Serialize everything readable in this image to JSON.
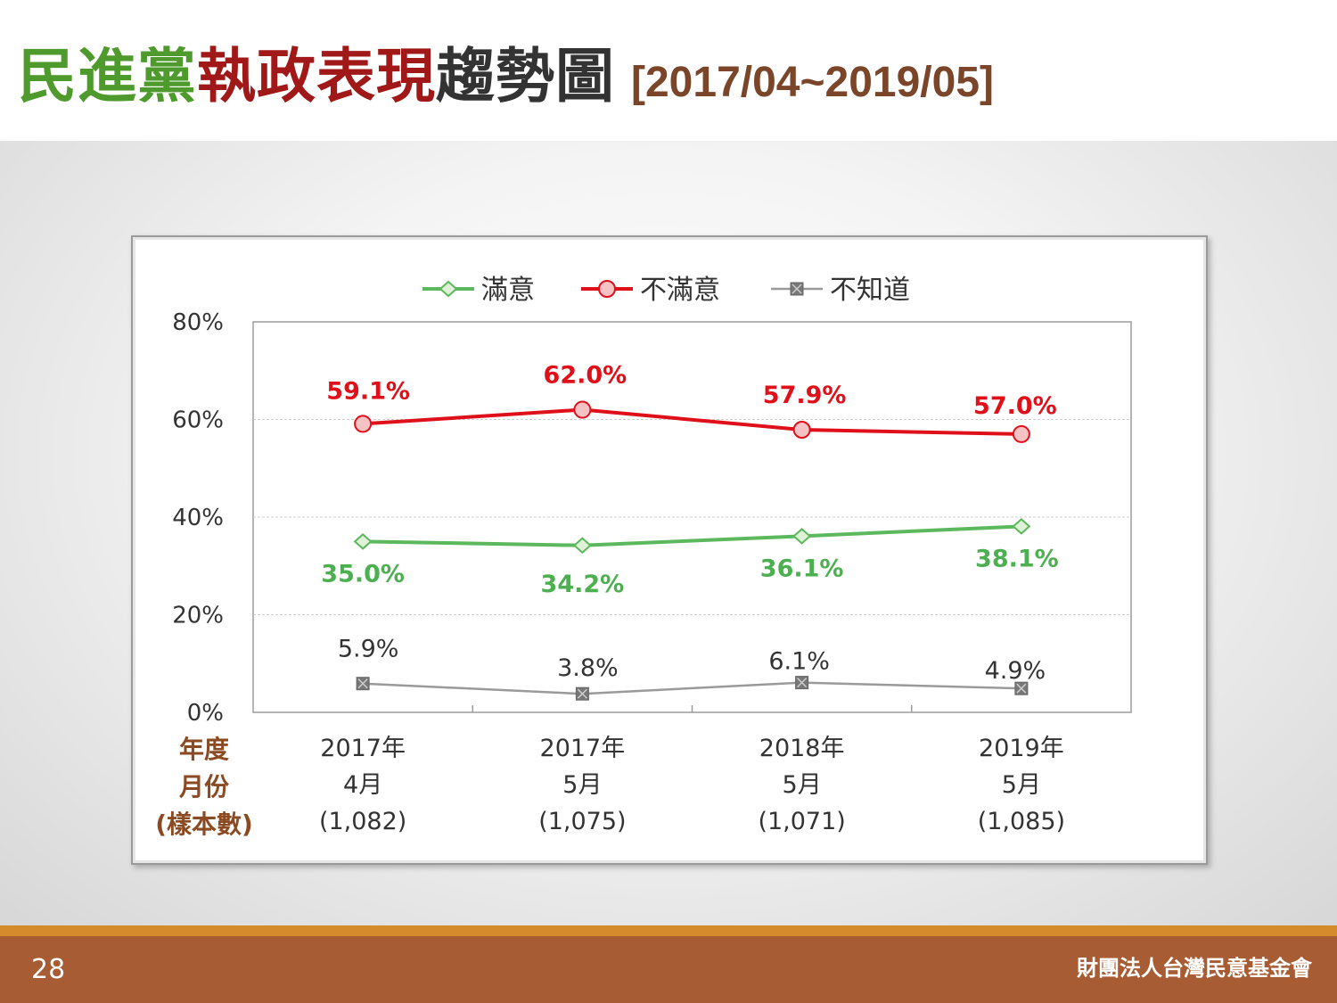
{
  "title": {
    "part1": "民進",
    "part2": "黨",
    "part3": "執政表現",
    "part4": "趨勢圖",
    "range": "[2017/04~2019/05]",
    "colors": {
      "part1": "#4e9a2c",
      "part2": "#4e9a2c",
      "part3": "#a01818",
      "part4": "#333333"
    }
  },
  "chart_data": {
    "type": "line",
    "categories": [
      "2017年4月",
      "2017年5月",
      "2018年5月",
      "2019年5月"
    ],
    "category_lines": [
      [
        "2017年",
        "4月",
        "(1,082)"
      ],
      [
        "2017年",
        "5月",
        "(1,075)"
      ],
      [
        "2018年",
        "5月",
        "(1,071)"
      ],
      [
        "2019年",
        "5月",
        "(1,085)"
      ]
    ],
    "row_header": [
      "年度",
      "月份",
      "(樣本數)"
    ],
    "sample_sizes": [
      1082,
      1075,
      1071,
      1085
    ],
    "ylim": [
      0,
      80
    ],
    "yticks": [
      "0%",
      "20%",
      "40%",
      "60%",
      "80%"
    ],
    "grid": true,
    "legend_position": "top",
    "series": [
      {
        "name": "滿意",
        "values": [
          35.0,
          34.2,
          36.1,
          38.1
        ],
        "labels": [
          "35.0%",
          "34.2%",
          "36.1%",
          "38.1%"
        ],
        "color": "#5cb85c",
        "marker": "diamond"
      },
      {
        "name": "不滿意",
        "values": [
          59.1,
          62.0,
          57.9,
          57.0
        ],
        "labels": [
          "59.1%",
          "62.0%",
          "57.9%",
          "57.0%"
        ],
        "color": "#e0101a",
        "marker": "circle"
      },
      {
        "name": "不知道",
        "values": [
          5.9,
          3.8,
          6.1,
          4.9
        ],
        "labels": [
          "5.9%",
          "3.8%",
          "6.1%",
          "4.9%"
        ],
        "color": "#9a9a9a",
        "marker": "square-x"
      }
    ]
  },
  "footer": {
    "page_number": "28",
    "organization": "財團法人台灣民意基金會"
  }
}
